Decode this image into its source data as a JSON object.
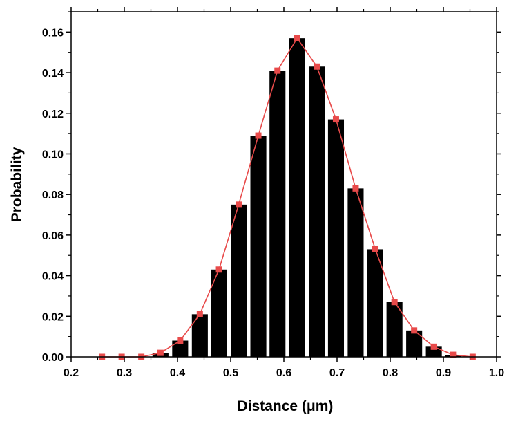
{
  "chart_data": {
    "type": "bar",
    "title": "",
    "xlabel": "Distance (μm)",
    "ylabel": "Probability",
    "xlim": [
      0.2,
      1.0
    ],
    "ylim": [
      0.0,
      0.17
    ],
    "x_ticks": [
      "0.2",
      "0.3",
      "0.4",
      "0.5",
      "0.6",
      "0.7",
      "0.8",
      "0.9",
      "1.0"
    ],
    "y_ticks": [
      "0.00",
      "0.02",
      "0.04",
      "0.06",
      "0.08",
      "0.10",
      "0.12",
      "0.14",
      "0.16"
    ],
    "grid": false,
    "legend": "none",
    "bar_color": "#000000",
    "line_color": "#e84a4a",
    "bar_width": 0.03,
    "x": [
      0.258,
      0.295,
      0.332,
      0.368,
      0.405,
      0.442,
      0.478,
      0.515,
      0.552,
      0.588,
      0.625,
      0.662,
      0.698,
      0.735,
      0.772,
      0.808,
      0.845,
      0.882,
      0.918,
      0.955
    ],
    "series": [
      {
        "type": "bar",
        "values": [
          0.0,
          0.0,
          0.0,
          0.002,
          0.008,
          0.021,
          0.043,
          0.075,
          0.109,
          0.141,
          0.157,
          0.143,
          0.117,
          0.083,
          0.053,
          0.027,
          0.013,
          0.005,
          0.001,
          0.0
        ]
      },
      {
        "type": "line",
        "marker": "square",
        "values": [
          0.0,
          0.0,
          0.0,
          0.002,
          0.008,
          0.021,
          0.043,
          0.075,
          0.109,
          0.141,
          0.157,
          0.143,
          0.117,
          0.083,
          0.053,
          0.027,
          0.013,
          0.005,
          0.001,
          0.0
        ]
      }
    ]
  }
}
